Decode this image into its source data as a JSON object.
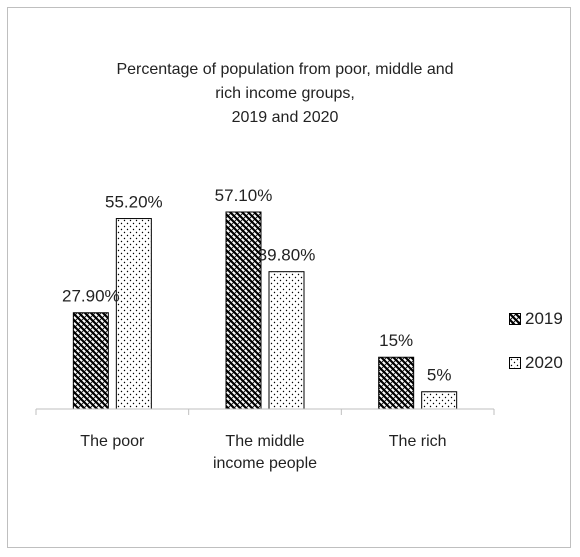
{
  "chart_data": {
    "type": "bar",
    "title_lines": [
      "Percentage of population from poor, middle and",
      "rich income groups,",
      "2019 and 2020"
    ],
    "categories": [
      [
        "The poor"
      ],
      [
        "The middle",
        "income people"
      ],
      [
        "The rich"
      ]
    ],
    "series": [
      {
        "name": "2019",
        "values": [
          27.9,
          57.1,
          15
        ],
        "labels": [
          "27.90%",
          "57.10%",
          "15%"
        ]
      },
      {
        "name": "2020",
        "values": [
          55.2,
          39.8,
          5
        ],
        "labels": [
          "55.20%",
          "39.80%",
          "5%"
        ]
      }
    ],
    "ylim": [
      0,
      60
    ],
    "grid": false,
    "legend_position": "right"
  }
}
